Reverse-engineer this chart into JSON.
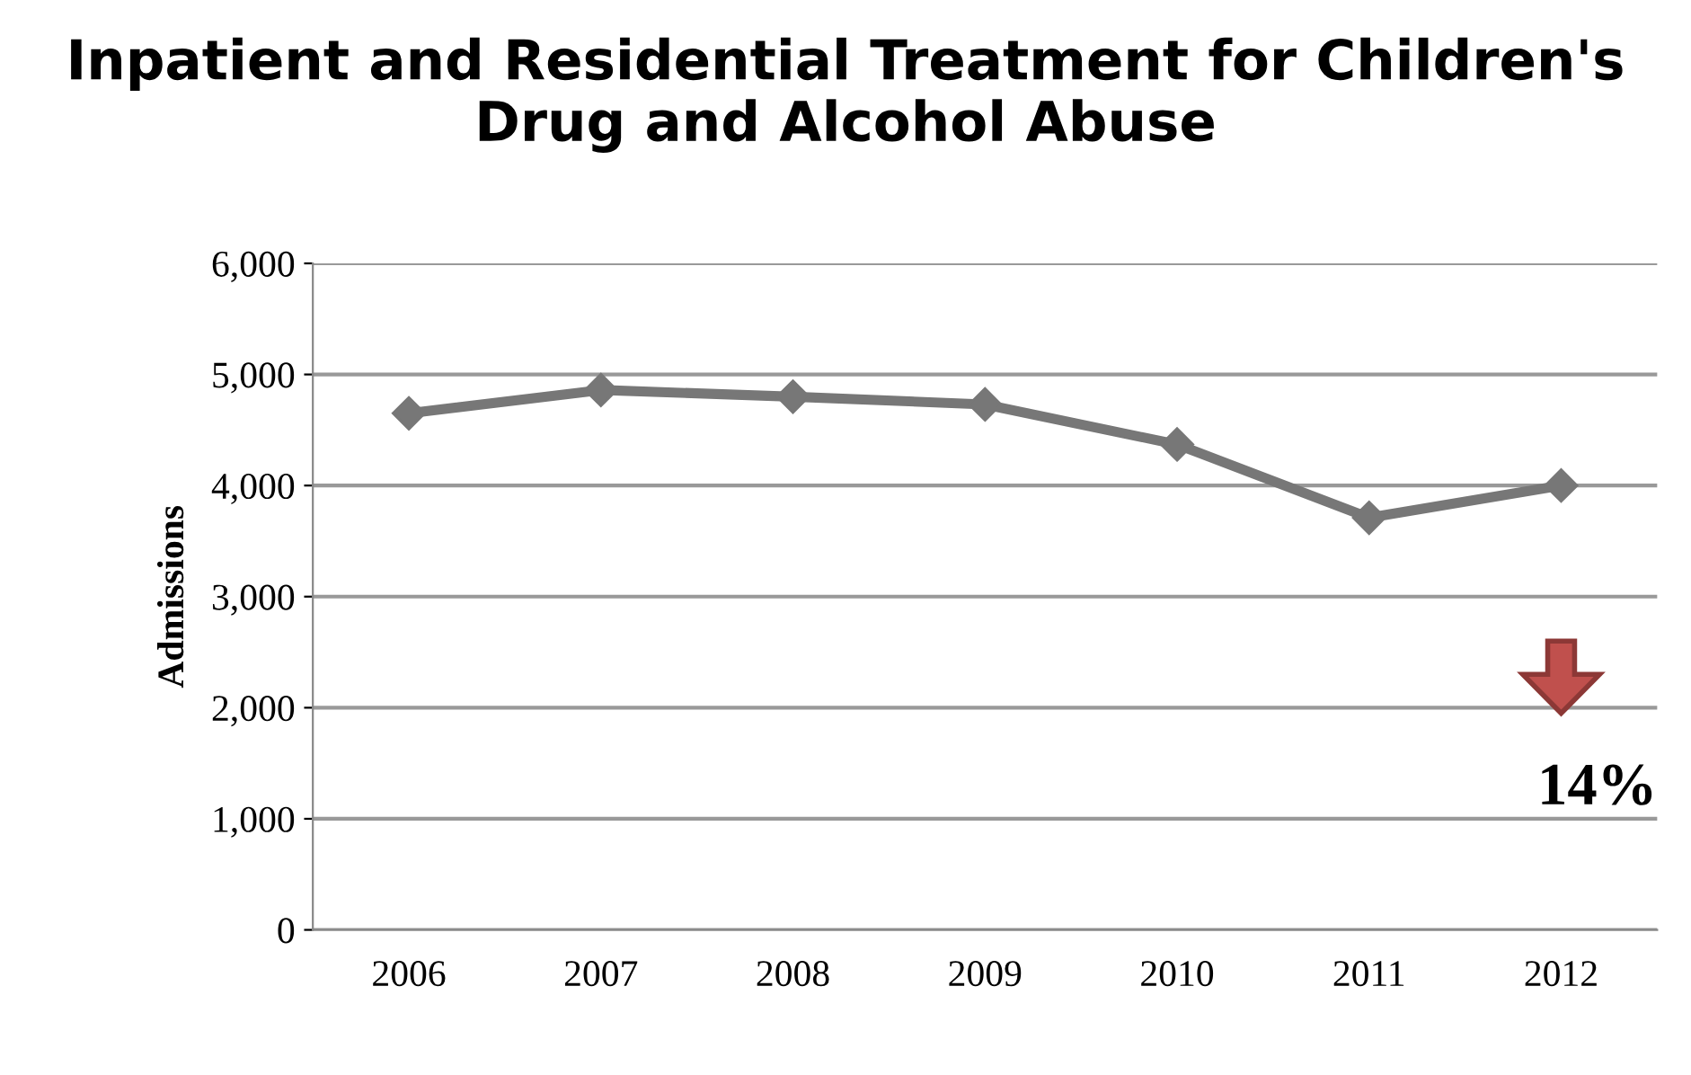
{
  "chart_data": {
    "type": "line",
    "title": "Inpatient and Residential Treatment for Children's Drug and Alcohol Abuse",
    "ylabel": "Admissions",
    "categories": [
      "2006",
      "2007",
      "2008",
      "2009",
      "2010",
      "2011",
      "2012"
    ],
    "series": [
      {
        "color": "#777777",
        "values": [
          4650,
          4860,
          4800,
          4730,
          4370,
          3710,
          4000
        ]
      }
    ],
    "ylim": [
      0,
      6000
    ],
    "yticks": [
      {
        "value": 0,
        "label": "0"
      },
      {
        "value": 1000,
        "label": "1,000"
      },
      {
        "value": 2000,
        "label": "2,000"
      },
      {
        "value": 3000,
        "label": "3,000"
      },
      {
        "value": 4000,
        "label": "4,000"
      },
      {
        "value": 5000,
        "label": "5,000"
      },
      {
        "value": 6000,
        "label": "6,000"
      }
    ],
    "grid": "y",
    "marker": "diamond",
    "line_style": "solid",
    "annotations": [
      "14%"
    ]
  }
}
